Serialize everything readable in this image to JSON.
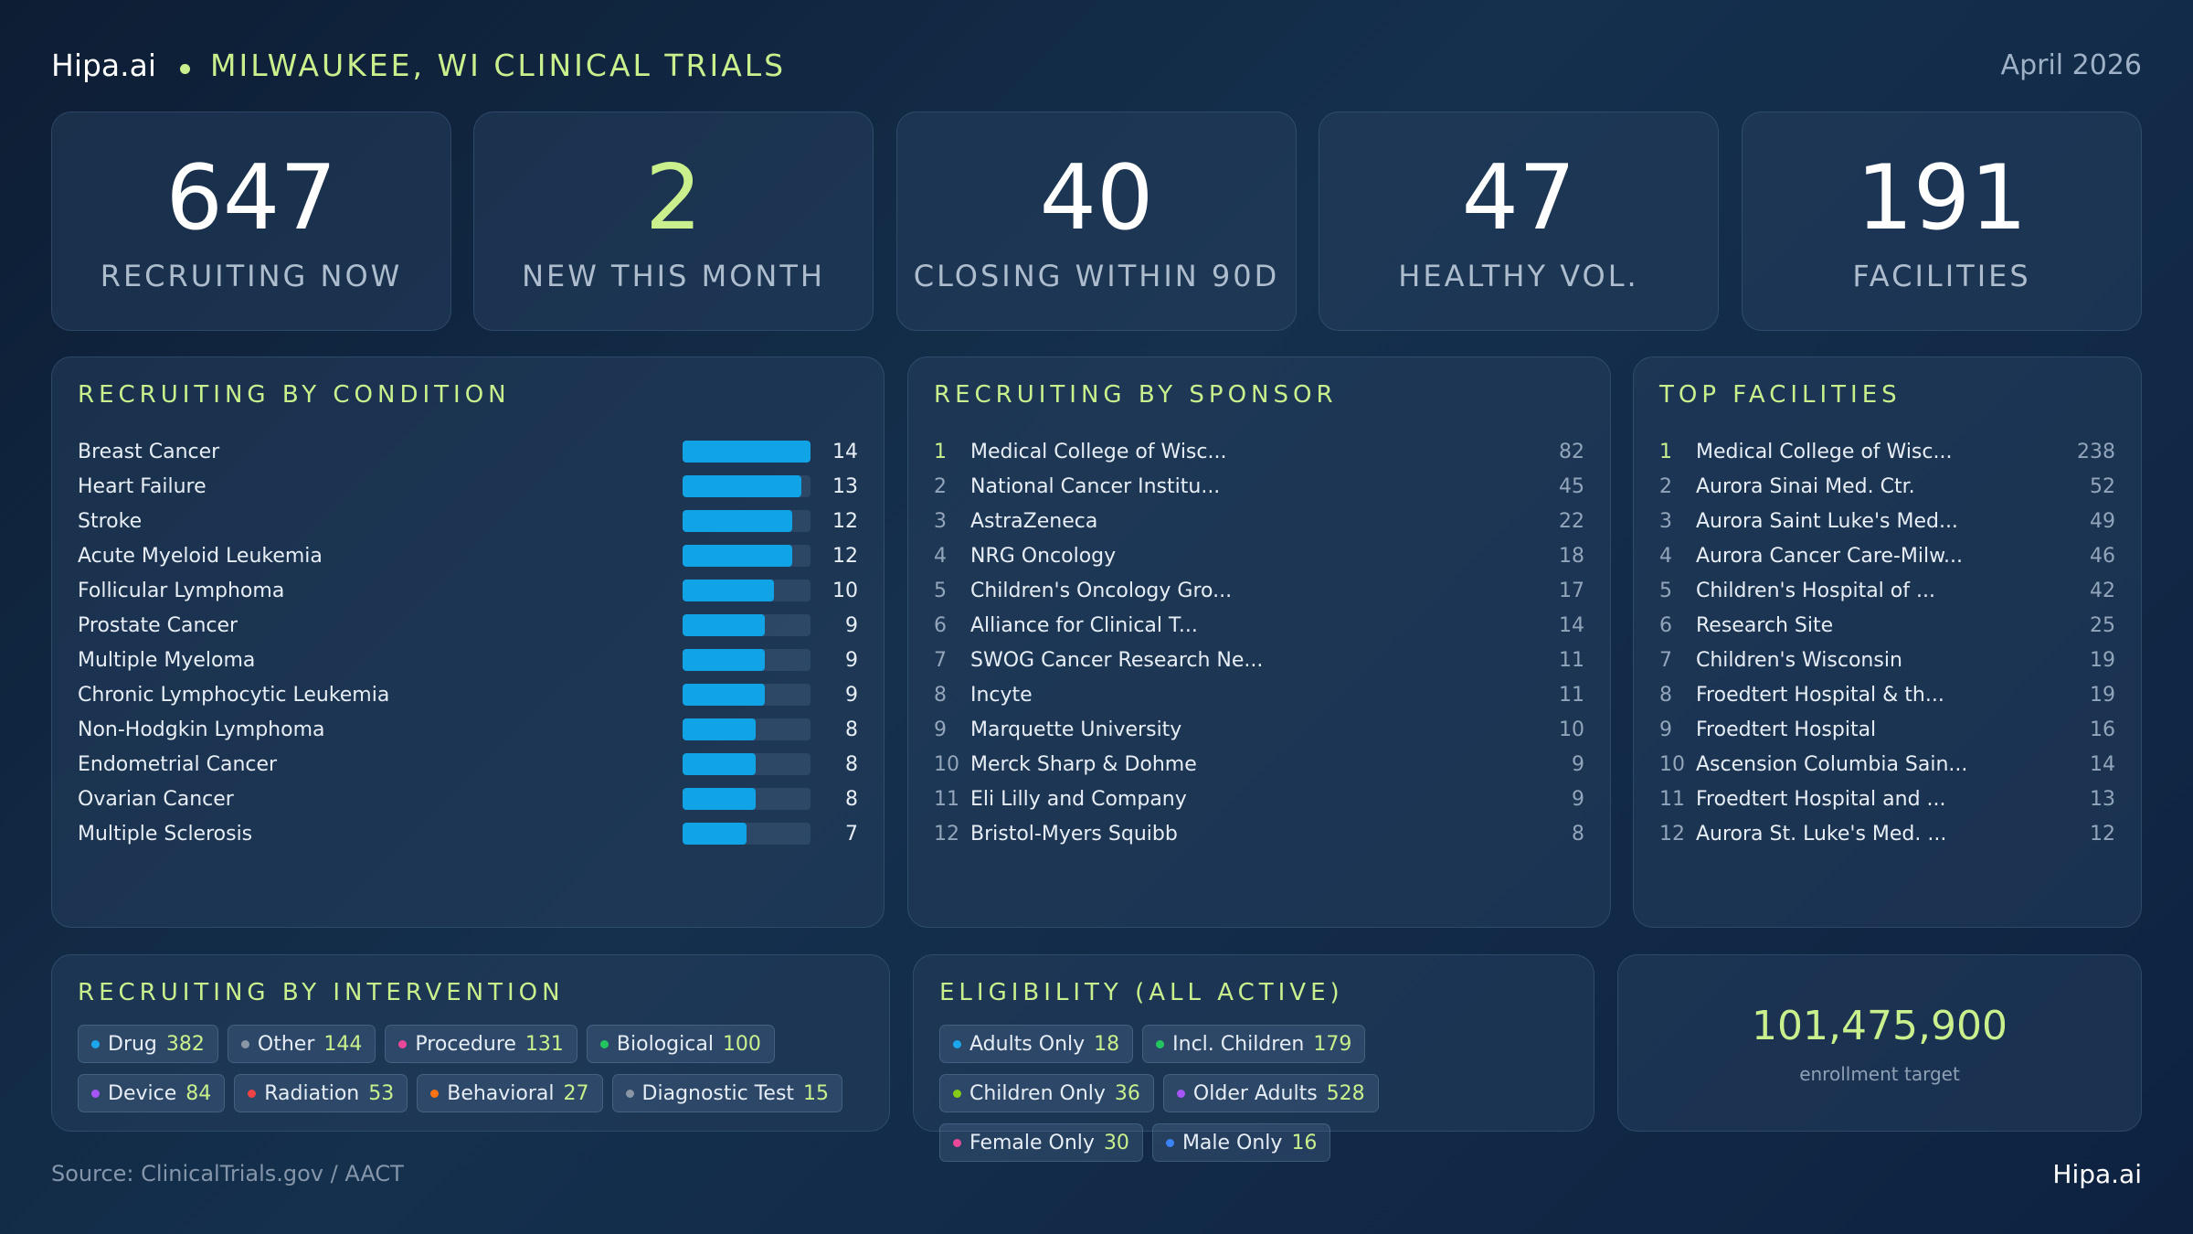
{
  "header": {
    "brand": "Hipa.ai",
    "city_title": "MILWAUKEE, WI CLINICAL TRIALS",
    "date": "April 2026"
  },
  "kpis": [
    {
      "value": "647",
      "label": "RECRUITING NOW"
    },
    {
      "value": "2",
      "label": "NEW THIS MONTH"
    },
    {
      "value": "40",
      "label": "CLOSING WITHIN 90D"
    },
    {
      "value": "47",
      "label": "HEALTHY VOL."
    },
    {
      "value": "191",
      "label": "FACILITIES"
    }
  ],
  "condition": {
    "title": "RECRUITING BY CONDITION",
    "max": 14,
    "items": [
      {
        "name": "Breast Cancer",
        "value": 14
      },
      {
        "name": "Heart Failure",
        "value": 13
      },
      {
        "name": "Stroke",
        "value": 12
      },
      {
        "name": "Acute Myeloid Leukemia",
        "value": 12
      },
      {
        "name": "Follicular Lymphoma",
        "value": 10
      },
      {
        "name": "Prostate Cancer",
        "value": 9
      },
      {
        "name": "Multiple Myeloma",
        "value": 9
      },
      {
        "name": "Chronic Lymphocytic Leukemia",
        "value": 9
      },
      {
        "name": "Non-Hodgkin Lymphoma",
        "value": 8
      },
      {
        "name": "Endometrial Cancer",
        "value": 8
      },
      {
        "name": "Ovarian Cancer",
        "value": 8
      },
      {
        "name": "Multiple Sclerosis",
        "value": 7
      }
    ]
  },
  "sponsor": {
    "title": "RECRUITING BY SPONSOR",
    "items": [
      {
        "rank": "1",
        "name": "Medical College of Wisc...",
        "value": "82"
      },
      {
        "rank": "2",
        "name": "National Cancer Institu...",
        "value": "45"
      },
      {
        "rank": "3",
        "name": "AstraZeneca",
        "value": "22"
      },
      {
        "rank": "4",
        "name": "NRG Oncology",
        "value": "18"
      },
      {
        "rank": "5",
        "name": "Children's Oncology Gro...",
        "value": "17"
      },
      {
        "rank": "6",
        "name": "Alliance for Clinical T...",
        "value": "14"
      },
      {
        "rank": "7",
        "name": "SWOG Cancer Research Ne...",
        "value": "11"
      },
      {
        "rank": "8",
        "name": "Incyte",
        "value": "11"
      },
      {
        "rank": "9",
        "name": "Marquette University",
        "value": "10"
      },
      {
        "rank": "10",
        "name": "Merck Sharp & Dohme",
        "value": "9"
      },
      {
        "rank": "11",
        "name": "Eli Lilly and Company",
        "value": "9"
      },
      {
        "rank": "12",
        "name": "Bristol-Myers Squibb",
        "value": "8"
      }
    ]
  },
  "facilities": {
    "title": "TOP FACILITIES",
    "items": [
      {
        "rank": "1",
        "name": "Medical College of Wisc...",
        "value": "238"
      },
      {
        "rank": "2",
        "name": "Aurora Sinai Med. Ctr.",
        "value": "52"
      },
      {
        "rank": "3",
        "name": "Aurora Saint Luke's Med...",
        "value": "49"
      },
      {
        "rank": "4",
        "name": "Aurora Cancer Care-Milw...",
        "value": "46"
      },
      {
        "rank": "5",
        "name": "Children's Hospital of ...",
        "value": "42"
      },
      {
        "rank": "6",
        "name": "Research Site",
        "value": "25"
      },
      {
        "rank": "7",
        "name": "Children's Wisconsin",
        "value": "19"
      },
      {
        "rank": "8",
        "name": "Froedtert Hospital & th...",
        "value": "19"
      },
      {
        "rank": "9",
        "name": "Froedtert Hospital",
        "value": "16"
      },
      {
        "rank": "10",
        "name": "Ascension Columbia Sain...",
        "value": "14"
      },
      {
        "rank": "11",
        "name": "Froedtert Hospital and ...",
        "value": "13"
      },
      {
        "rank": "12",
        "name": "Aurora St. Luke's Med. ...",
        "value": "12"
      }
    ]
  },
  "intervention": {
    "title": "RECRUITING BY INTERVENTION",
    "chips": [
      {
        "label": "Drug",
        "value": "382",
        "color": "#1aa7ec"
      },
      {
        "label": "Other",
        "value": "144",
        "color": "#8a96a6"
      },
      {
        "label": "Procedure",
        "value": "131",
        "color": "#ec4899"
      },
      {
        "label": "Biological",
        "value": "100",
        "color": "#22c55e"
      },
      {
        "label": "Device",
        "value": "84",
        "color": "#a855f7"
      },
      {
        "label": "Radiation",
        "value": "53",
        "color": "#ef4444"
      },
      {
        "label": "Behavioral",
        "value": "27",
        "color": "#f97316"
      },
      {
        "label": "Diagnostic Test",
        "value": "15",
        "color": "#8a96a6"
      }
    ]
  },
  "eligibility": {
    "title": "ELIGIBILITY (ALL ACTIVE)",
    "chips": [
      {
        "label": "Adults Only",
        "value": "18",
        "color": "#1aa7ec"
      },
      {
        "label": "Incl. Children",
        "value": "179",
        "color": "#22c55e"
      },
      {
        "label": "Children Only",
        "value": "36",
        "color": "#84cc16"
      },
      {
        "label": "Older Adults",
        "value": "528",
        "color": "#a855f7"
      },
      {
        "label": "Female Only",
        "value": "30",
        "color": "#ec4899"
      },
      {
        "label": "Male Only",
        "value": "16",
        "color": "#3b82f6"
      }
    ]
  },
  "enrollment": {
    "value": "101,475,900",
    "label": "enrollment target"
  },
  "footer": {
    "source": "Source: ClinicalTrials.gov / AACT",
    "brand": "Hipa.ai"
  }
}
